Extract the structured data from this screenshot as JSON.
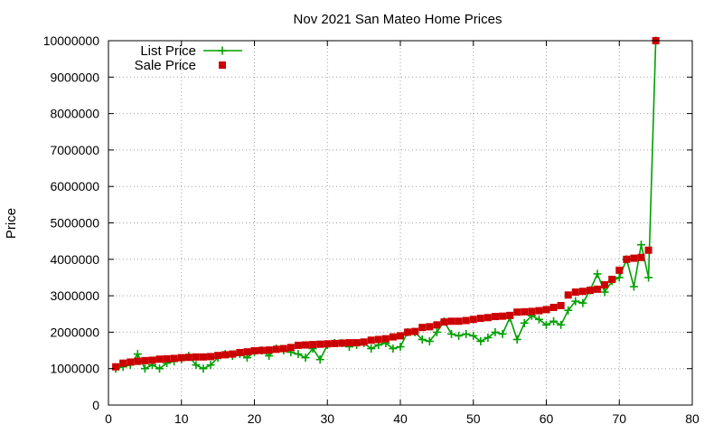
{
  "chart_data": {
    "type": "scatter",
    "title": "Nov 2021 San Mateo Home Prices",
    "xlabel": "",
    "ylabel": "Price",
    "xlim": [
      0,
      80
    ],
    "ylim": [
      0,
      10000000
    ],
    "xticks": [
      0,
      10,
      20,
      30,
      40,
      50,
      60,
      70,
      80
    ],
    "yticks": [
      0,
      1000000,
      2000000,
      3000000,
      4000000,
      5000000,
      6000000,
      7000000,
      8000000,
      9000000,
      10000000
    ],
    "grid": true,
    "legend_position": "top-left",
    "series": [
      {
        "name": "List Price",
        "style": "linespoints",
        "marker": "plus",
        "color": "#00a000",
        "x": [
          1,
          2,
          3,
          4,
          5,
          6,
          7,
          8,
          9,
          10,
          11,
          12,
          13,
          14,
          15,
          16,
          17,
          18,
          19,
          20,
          21,
          22,
          23,
          24,
          25,
          26,
          27,
          28,
          29,
          30,
          31,
          32,
          33,
          34,
          35,
          36,
          37,
          38,
          39,
          40,
          41,
          42,
          43,
          44,
          45,
          46,
          47,
          48,
          49,
          50,
          51,
          52,
          53,
          54,
          55,
          56,
          57,
          58,
          59,
          60,
          61,
          62,
          63,
          64,
          65,
          66,
          67,
          68,
          69,
          70,
          71,
          72,
          73,
          74,
          75
        ],
        "y": [
          1000000,
          1050000,
          1100000,
          1400000,
          1000000,
          1100000,
          1000000,
          1150000,
          1200000,
          1250000,
          1350000,
          1100000,
          1000000,
          1100000,
          1300000,
          1400000,
          1350000,
          1400000,
          1300000,
          1450000,
          1500000,
          1350000,
          1550000,
          1500000,
          1450000,
          1400000,
          1300000,
          1550000,
          1250000,
          1650000,
          1700000,
          1700000,
          1600000,
          1650000,
          1700000,
          1550000,
          1650000,
          1700000,
          1550000,
          1600000,
          2000000,
          2000000,
          1800000,
          1750000,
          2000000,
          2300000,
          1950000,
          1900000,
          1950000,
          1900000,
          1750000,
          1850000,
          2000000,
          1950000,
          2400000,
          1800000,
          2250000,
          2450000,
          2350000,
          2200000,
          2300000,
          2200000,
          2600000,
          2850000,
          2800000,
          3150000,
          3600000,
          3100000,
          3400000,
          3500000,
          4000000,
          3250000,
          4400000,
          3500000,
          10000000
        ]
      },
      {
        "name": "Sale Price",
        "style": "points",
        "marker": "square",
        "color": "#cc0000",
        "x": [
          1,
          2,
          3,
          4,
          5,
          6,
          7,
          8,
          9,
          10,
          11,
          12,
          13,
          14,
          15,
          16,
          17,
          18,
          19,
          20,
          21,
          22,
          23,
          24,
          25,
          26,
          27,
          28,
          29,
          30,
          31,
          32,
          33,
          34,
          35,
          36,
          37,
          38,
          39,
          40,
          41,
          42,
          43,
          44,
          45,
          46,
          47,
          48,
          49,
          50,
          51,
          52,
          53,
          54,
          55,
          56,
          57,
          58,
          59,
          60,
          61,
          62,
          63,
          64,
          65,
          66,
          67,
          68,
          69,
          70,
          71,
          72,
          73,
          74,
          75
        ],
        "y": [
          1050000,
          1150000,
          1180000,
          1200000,
          1220000,
          1230000,
          1260000,
          1270000,
          1280000,
          1300000,
          1310000,
          1320000,
          1320000,
          1330000,
          1360000,
          1380000,
          1400000,
          1440000,
          1460000,
          1490000,
          1500000,
          1510000,
          1530000,
          1550000,
          1580000,
          1640000,
          1650000,
          1660000,
          1670000,
          1680000,
          1690000,
          1700000,
          1710000,
          1710000,
          1730000,
          1780000,
          1800000,
          1820000,
          1870000,
          1900000,
          2000000,
          2020000,
          2130000,
          2150000,
          2200000,
          2280000,
          2300000,
          2300000,
          2320000,
          2350000,
          2380000,
          2400000,
          2430000,
          2440000,
          2460000,
          2550000,
          2560000,
          2570000,
          2590000,
          2620000,
          2680000,
          2730000,
          3020000,
          3100000,
          3120000,
          3150000,
          3180000,
          3300000,
          3450000,
          3700000,
          4000000,
          4030000,
          4050000,
          4250000,
          10000000
        ]
      }
    ]
  }
}
